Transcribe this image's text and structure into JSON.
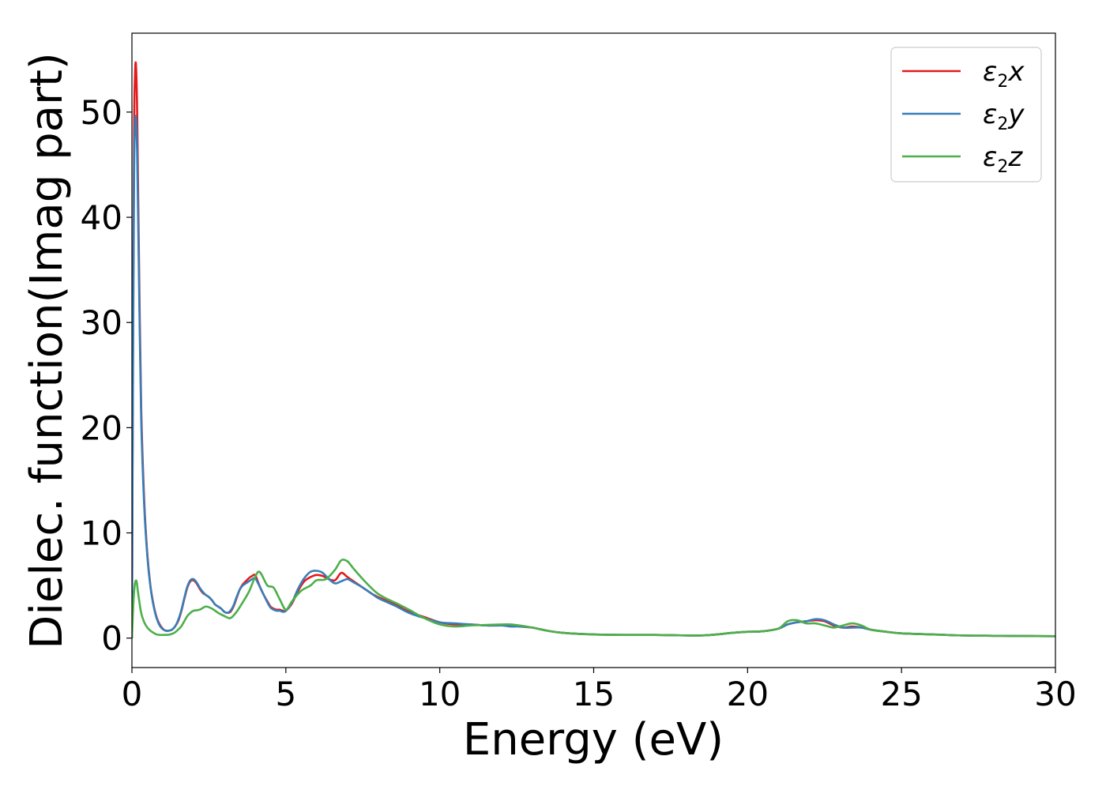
{
  "chart_data": {
    "type": "line",
    "title": "",
    "xlabel": "Energy (eV)",
    "ylabel": "Dielec. function(Imag part)",
    "xlim": [
      0,
      30
    ],
    "ylim": [
      -2.8,
      57.5
    ],
    "xticks": [
      0,
      5,
      10,
      15,
      20,
      25,
      30
    ],
    "yticks": [
      0,
      10,
      20,
      30,
      40,
      50
    ],
    "grid": false,
    "legend_position": "top-right",
    "series": [
      {
        "name": "ε2x",
        "legend_base": "ε",
        "legend_sub": "2",
        "legend_suffix": "x",
        "color": "#e41a1c",
        "x": [
          0,
          0.03,
          0.07,
          0.1,
          0.13,
          0.17,
          0.22,
          0.3,
          0.4,
          0.5,
          0.6,
          0.7,
          0.8,
          0.9,
          1.0,
          1.1,
          1.2,
          1.3,
          1.4,
          1.5,
          1.6,
          1.7,
          1.8,
          1.9,
          2.0,
          2.1,
          2.2,
          2.3,
          2.4,
          2.5,
          2.6,
          2.7,
          2.8,
          2.9,
          3.0,
          3.1,
          3.2,
          3.3,
          3.4,
          3.5,
          3.6,
          3.7,
          3.8,
          3.9,
          4.0,
          4.1,
          4.2,
          4.3,
          4.4,
          4.5,
          4.6,
          4.7,
          4.8,
          4.9,
          5.0,
          5.2,
          5.4,
          5.6,
          5.8,
          6.0,
          6.2,
          6.4,
          6.6,
          6.8,
          7.0,
          7.2,
          7.5,
          7.8,
          8.0,
          8.3,
          8.6,
          9.0,
          9.5,
          10.0,
          10.5,
          11.0,
          11.5,
          12.0,
          12.3,
          12.6,
          13.0,
          13.5,
          14.0,
          15.0,
          16.0,
          17.0,
          18.0,
          18.5,
          19.0,
          19.5,
          20.0,
          20.5,
          21.0,
          21.3,
          21.6,
          21.9,
          22.2,
          22.5,
          22.8,
          23.1,
          23.4,
          23.7,
          24.0,
          24.5,
          25.0,
          26.0,
          27.0,
          28.0,
          29.0,
          30.0
        ],
        "y": [
          0,
          25,
          48,
          53.5,
          54.5,
          50,
          38,
          22,
          13,
          8,
          5,
          3.2,
          2,
          1.3,
          0.9,
          0.7,
          0.7,
          0.8,
          1.1,
          1.6,
          2.5,
          3.7,
          4.8,
          5.4,
          5.5,
          5.2,
          4.7,
          4.3,
          4.1,
          3.9,
          3.6,
          3.2,
          3.0,
          2.8,
          2.5,
          2.4,
          2.5,
          3.0,
          3.8,
          4.6,
          5.1,
          5.4,
          5.7,
          5.9,
          6.0,
          5.3,
          4.6,
          4.0,
          3.5,
          3.0,
          2.8,
          2.7,
          2.7,
          2.6,
          2.6,
          3.3,
          4.5,
          5.4,
          5.8,
          6.0,
          5.9,
          5.6,
          5.5,
          6.2,
          5.8,
          5.4,
          4.8,
          4.2,
          3.9,
          3.5,
          3.1,
          2.5,
          2.0,
          1.5,
          1.3,
          1.3,
          1.2,
          1.2,
          1.2,
          1.1,
          1.0,
          0.7,
          0.5,
          0.35,
          0.3,
          0.3,
          0.25,
          0.25,
          0.35,
          0.5,
          0.6,
          0.65,
          0.9,
          1.3,
          1.5,
          1.6,
          1.7,
          1.6,
          1.2,
          1.0,
          1.1,
          1.0,
          0.8,
          0.6,
          0.45,
          0.35,
          0.25,
          0.22,
          0.2,
          0.18
        ]
      },
      {
        "name": "ε2y",
        "legend_base": "ε",
        "legend_sub": "2",
        "legend_suffix": "y",
        "color": "#377eb8",
        "x": [
          0,
          0.03,
          0.07,
          0.1,
          0.13,
          0.17,
          0.22,
          0.3,
          0.4,
          0.5,
          0.6,
          0.7,
          0.8,
          0.9,
          1.0,
          1.1,
          1.2,
          1.3,
          1.4,
          1.5,
          1.6,
          1.7,
          1.8,
          1.9,
          2.0,
          2.1,
          2.2,
          2.3,
          2.4,
          2.5,
          2.6,
          2.7,
          2.8,
          2.9,
          3.0,
          3.1,
          3.2,
          3.3,
          3.4,
          3.5,
          3.6,
          3.7,
          3.8,
          3.9,
          4.0,
          4.1,
          4.2,
          4.3,
          4.4,
          4.5,
          4.6,
          4.7,
          4.8,
          4.9,
          5.0,
          5.2,
          5.4,
          5.6,
          5.8,
          6.0,
          6.2,
          6.4,
          6.6,
          6.8,
          7.0,
          7.2,
          7.5,
          7.8,
          8.0,
          8.3,
          8.6,
          9.0,
          9.5,
          10.0,
          10.5,
          11.0,
          11.5,
          12.0,
          12.3,
          12.6,
          13.0,
          13.5,
          14.0,
          15.0,
          16.0,
          17.0,
          18.0,
          18.5,
          19.0,
          19.5,
          20.0,
          20.5,
          21.0,
          21.3,
          21.6,
          21.9,
          22.2,
          22.5,
          22.8,
          23.1,
          23.4,
          23.7,
          24.0,
          24.5,
          25.0,
          26.0,
          27.0,
          28.0,
          29.0,
          30.0
        ],
        "y": [
          0,
          22,
          44,
          48.5,
          49.5,
          46,
          36,
          21,
          12.5,
          7.8,
          4.9,
          3.1,
          1.9,
          1.2,
          0.85,
          0.7,
          0.7,
          0.8,
          1.1,
          1.7,
          2.6,
          3.8,
          4.9,
          5.5,
          5.6,
          5.3,
          4.8,
          4.4,
          4.1,
          3.9,
          3.6,
          3.2,
          3.0,
          2.8,
          2.5,
          2.4,
          2.6,
          3.1,
          3.9,
          4.6,
          5.0,
          5.2,
          5.4,
          5.6,
          5.7,
          5.2,
          4.6,
          4.0,
          3.4,
          2.9,
          2.7,
          2.6,
          2.6,
          2.5,
          2.6,
          3.4,
          4.7,
          5.7,
          6.3,
          6.4,
          6.2,
          5.6,
          5.2,
          5.4,
          5.6,
          5.3,
          4.8,
          4.2,
          3.8,
          3.4,
          3.0,
          2.4,
          1.9,
          1.5,
          1.4,
          1.3,
          1.2,
          1.2,
          1.1,
          1.1,
          1.0,
          0.7,
          0.5,
          0.35,
          0.3,
          0.3,
          0.25,
          0.25,
          0.35,
          0.5,
          0.6,
          0.65,
          0.9,
          1.3,
          1.5,
          1.6,
          1.8,
          1.7,
          1.3,
          1.0,
          1.0,
          1.0,
          0.8,
          0.6,
          0.45,
          0.35,
          0.25,
          0.22,
          0.2,
          0.18
        ]
      },
      {
        "name": "ε2z",
        "legend_base": "ε",
        "legend_sub": "2",
        "legend_suffix": "z",
        "color": "#4daf4a",
        "x": [
          0,
          0.05,
          0.1,
          0.15,
          0.2,
          0.3,
          0.4,
          0.5,
          0.6,
          0.7,
          0.8,
          0.9,
          1.0,
          1.1,
          1.2,
          1.3,
          1.4,
          1.5,
          1.6,
          1.7,
          1.8,
          1.9,
          2.0,
          2.2,
          2.4,
          2.6,
          2.8,
          3.0,
          3.2,
          3.4,
          3.6,
          3.8,
          3.9,
          4.0,
          4.1,
          4.2,
          4.4,
          4.6,
          4.8,
          5.0,
          5.2,
          5.5,
          5.8,
          6.0,
          6.3,
          6.6,
          6.8,
          7.0,
          7.2,
          7.5,
          7.8,
          8.0,
          8.3,
          8.6,
          9.0,
          9.5,
          10.0,
          10.5,
          11.0,
          11.5,
          12.0,
          12.3,
          12.6,
          13.0,
          13.5,
          14.0,
          15.0,
          16.0,
          17.0,
          18.0,
          18.5,
          19.0,
          19.5,
          20.0,
          20.5,
          21.0,
          21.3,
          21.6,
          21.9,
          22.2,
          22.5,
          22.8,
          23.1,
          23.4,
          23.7,
          24.0,
          24.5,
          25.0,
          26.0,
          27.0,
          28.0,
          29.0,
          30.0
        ],
        "y": [
          0,
          3.5,
          5.2,
          5.4,
          4.3,
          2.4,
          1.5,
          1.0,
          0.7,
          0.5,
          0.35,
          0.3,
          0.3,
          0.3,
          0.32,
          0.4,
          0.55,
          0.8,
          1.1,
          1.6,
          2.1,
          2.4,
          2.6,
          2.7,
          3.0,
          2.8,
          2.4,
          2.1,
          1.9,
          2.5,
          3.4,
          4.4,
          5.1,
          5.8,
          6.3,
          6.1,
          5.0,
          4.8,
          3.7,
          2.7,
          3.5,
          4.5,
          5.0,
          5.5,
          5.6,
          6.5,
          7.4,
          7.3,
          6.6,
          5.6,
          4.7,
          4.2,
          3.7,
          3.3,
          2.7,
          1.9,
          1.3,
          1.1,
          1.2,
          1.25,
          1.3,
          1.3,
          1.2,
          1.0,
          0.7,
          0.5,
          0.35,
          0.3,
          0.3,
          0.25,
          0.25,
          0.35,
          0.5,
          0.6,
          0.65,
          0.9,
          1.6,
          1.7,
          1.4,
          1.4,
          1.2,
          1.0,
          1.2,
          1.4,
          1.2,
          0.8,
          0.6,
          0.45,
          0.35,
          0.25,
          0.22,
          0.2,
          0.18
        ]
      }
    ]
  }
}
